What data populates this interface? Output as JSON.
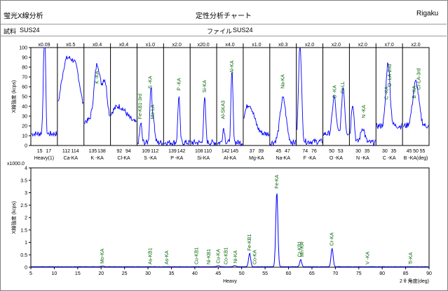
{
  "header": {
    "app_title": "蛍光X線分析",
    "chart_title": "定性分析チャート",
    "brand": "Rigaku",
    "sample_label": "試料",
    "sample_value": "SUS24",
    "file_label": "ファイル",
    "file_value": "SUS24"
  },
  "colors": {
    "trace": "#0000ff",
    "peak_label": "#006400",
    "frame": "#000000"
  },
  "chart_data": [
    {
      "type": "line",
      "ylabel": "X線強度 (kcps)",
      "ylim": [
        0,
        100
      ],
      "yticks": [
        0,
        10,
        20,
        30,
        40,
        50,
        60,
        70,
        80,
        90,
        100
      ],
      "panels": [
        {
          "scale": "x0.09",
          "xlabel": "Heavy(1)",
          "ticks": [
            "15",
            "17"
          ],
          "peak_labels": [],
          "peaks": [
            [
              0.5,
              72,
              0.04
            ],
            [
              0.53,
              78,
              0.03
            ]
          ],
          "baseline": 12
        },
        {
          "scale": "x0.5",
          "xlabel": "Ca-KA",
          "ticks": [
            "112",
            "114"
          ],
          "peak_labels": [],
          "peaks": [
            [
              0.3,
              55,
              0.2
            ],
            [
              0.7,
              50,
              0.2
            ]
          ],
          "baseline": 25
        },
        {
          "scale": "x0.4",
          "xlabel": "K -KA",
          "ticks": [
            "135",
            "138"
          ],
          "peak_labels": [
            {
              "text": "K -KA",
              "pos": 0.5,
              "level": 63
            }
          ],
          "peaks": [
            [
              0.5,
              58,
              0.12
            ],
            [
              0.8,
              40,
              0.1
            ]
          ],
          "baseline": 25
        },
        {
          "scale": "x0.4",
          "xlabel": "Cl-KA",
          "ticks": [
            "92",
            "94"
          ],
          "peak_labels": [],
          "peaks": [
            [
              0.3,
              18,
              0.3
            ]
          ],
          "baseline": 22
        },
        {
          "scale": "x1.0",
          "xlabel": "S -KA",
          "ticks": [
            "109",
            "112"
          ],
          "peak_labels": [
            {
              "text": "Fe-KB1-3rd",
              "pos": 0.12,
              "level": 27
            },
            {
              "text": "S -KA",
              "pos": 0.5,
              "level": 58
            },
            {
              "text": "Mo-LA",
              "pos": 0.6,
              "level": 27
            }
          ],
          "peaks": [
            [
              0.12,
              20,
              0.04
            ],
            [
              0.52,
              55,
              0.04
            ],
            [
              0.62,
              25,
              0.05
            ]
          ],
          "baseline": 3
        },
        {
          "scale": "x2.0",
          "xlabel": "P -KA",
          "ticks": [
            "139",
            "142"
          ],
          "peak_labels": [
            {
              "text": "P -KA",
              "pos": 0.58,
              "level": 56
            }
          ],
          "peaks": [
            [
              0.58,
              48,
              0.04
            ]
          ],
          "baseline": 3
        },
        {
          "scale": "x20.0",
          "xlabel": "Si-KA",
          "ticks": [
            "108",
            "110"
          ],
          "peak_labels": [
            {
              "text": "Si-KA",
              "pos": 0.55,
              "level": 54
            }
          ],
          "peaks": [
            [
              0.55,
              45,
              0.04
            ]
          ],
          "baseline": 3
        },
        {
          "scale": "x4.0",
          "xlabel": "Al-KA",
          "ticks": [
            "142",
            "145"
          ],
          "peak_labels": [
            {
              "text": "Al-SKA3",
              "pos": 0.25,
              "level": 27
            },
            {
              "text": "Al-KA",
              "pos": 0.58,
              "level": 74
            }
          ],
          "peaks": [
            [
              0.25,
              15,
              0.04
            ],
            [
              0.58,
              72,
              0.04
            ]
          ],
          "baseline": 3
        },
        {
          "scale": "x1.0",
          "xlabel": "Mg-KA",
          "ticks": [
            "37",
            "39"
          ],
          "peak_labels": [],
          "peaks": [
            [
              0.2,
              30,
              0.2
            ]
          ],
          "baseline": 12
        },
        {
          "scale": "x0.3",
          "xlabel": "Na-KA",
          "ticks": [
            "45",
            "47"
          ],
          "peak_labels": [
            {
              "text": "Na-KA",
              "pos": 0.5,
              "level": 58
            }
          ],
          "peaks": [
            [
              0.5,
              45,
              0.12
            ]
          ],
          "baseline": 3
        },
        {
          "scale": "x2.0",
          "xlabel": "F -KA",
          "ticks": [
            "74",
            "76"
          ],
          "peak_labels": [],
          "peaks": [
            [
              0.12,
              100,
              0.06
            ]
          ],
          "baseline": 4
        },
        {
          "scale": "x2.0",
          "xlabel": "O -KA",
          "ticks": [
            "50",
            "53"
          ],
          "peak_labels": [
            {
              "text": "O -KA",
              "pos": 0.45,
              "level": 48
            },
            {
              "text": "Cr-LL",
              "pos": 0.75,
              "level": 53
            }
          ],
          "peaks": [
            [
              0.42,
              38,
              0.07
            ],
            [
              0.78,
              48,
              0.06
            ]
          ],
          "baseline": 12
        },
        {
          "scale": "x2.0",
          "xlabel": "N -KA",
          "ticks": [
            "30",
            "35"
          ],
          "peak_labels": [
            {
              "text": "N -KA",
              "pos": 0.55,
              "level": 28
            }
          ],
          "peaks": [
            [
              0.1,
              40,
              0.06
            ],
            [
              0.5,
              15,
              0.08
            ]
          ],
          "baseline": 3
        },
        {
          "scale": "x7.0",
          "xlabel": "C -KA",
          "ticks": [
            "30",
            "35"
          ],
          "peak_labels": [
            {
              "text": "C -KA",
              "pos": 0.4,
              "level": 47
            },
            {
              "text": "O -LA-2nd",
              "pos": 0.52,
              "level": 60
            }
          ],
          "peaks": [
            [
              0.45,
              65,
              0.08
            ]
          ],
          "baseline": 20
        },
        {
          "scale": "x2.0",
          "xlabel": "B -KA(deg)",
          "ticks": [
            "45",
            "50",
            "55"
          ],
          "peak_labels": [
            {
              "text": "B -KA",
              "pos": 0.45,
              "level": 48
            },
            {
              "text": "Cr-LA-3rd",
              "pos": 0.62,
              "level": 57
            }
          ],
          "peaks": [
            [
              0.5,
              45,
              0.12
            ]
          ],
          "baseline": 20
        }
      ]
    },
    {
      "type": "line",
      "ylabel": "X線強度 (kcps)",
      "y_multiplier": "x1000.0",
      "ylim": [
        0,
        4
      ],
      "yticks": [
        "0",
        "0.5",
        "1",
        "1.5",
        "2",
        "2.5",
        "3",
        "3.5",
        "4"
      ],
      "xlim": [
        5,
        90
      ],
      "xticks": [
        5,
        10,
        15,
        20,
        25,
        30,
        35,
        40,
        45,
        50,
        55,
        60,
        65,
        70,
        75,
        80,
        85,
        90
      ],
      "xlabel": "Heavy",
      "xlabel_right": "2 θ 角度(deg)",
      "series": [
        {
          "peaks": [
            [
              57.5,
              3.05,
              0.22
            ],
            [
              51.7,
              0.55,
              0.22
            ],
            [
              69.3,
              0.75,
              0.22
            ],
            [
              62.6,
              0.3,
              0.2
            ],
            [
              48.5,
              0.05,
              0.3
            ],
            [
              45.0,
              0.04,
              0.3
            ],
            [
              20.3,
              0.03,
              0.3
            ]
          ]
        }
      ],
      "peak_labels": [
        {
          "text": "Mo-KA",
          "x": 20.3
        },
        {
          "text": "As-KB1",
          "x": 30.5
        },
        {
          "text": "As-KA",
          "x": 34.0
        },
        {
          "text": "Cu-KB1",
          "x": 40.4
        },
        {
          "text": "Ni-KB1",
          "x": 43.0
        },
        {
          "text": "Cu-KA",
          "x": 45.0
        },
        {
          "text": "Co-KB1",
          "x": 46.7
        },
        {
          "text": "Ni-KA",
          "x": 48.7
        },
        {
          "text": "Fe-KB1",
          "x": 51.7
        },
        {
          "text": "Co-KA",
          "x": 52.8
        },
        {
          "text": "Fe-KA",
          "x": 57.5
        },
        {
          "text": "Cr-KB1",
          "x": 62.4
        },
        {
          "text": "Mn-KA",
          "x": 62.9
        },
        {
          "text": "Cr-KA",
          "x": 69.3
        },
        {
          "text": "V -KA",
          "x": 76.9
        },
        {
          "text": "Ti-KA",
          "x": 86.1
        }
      ]
    }
  ]
}
